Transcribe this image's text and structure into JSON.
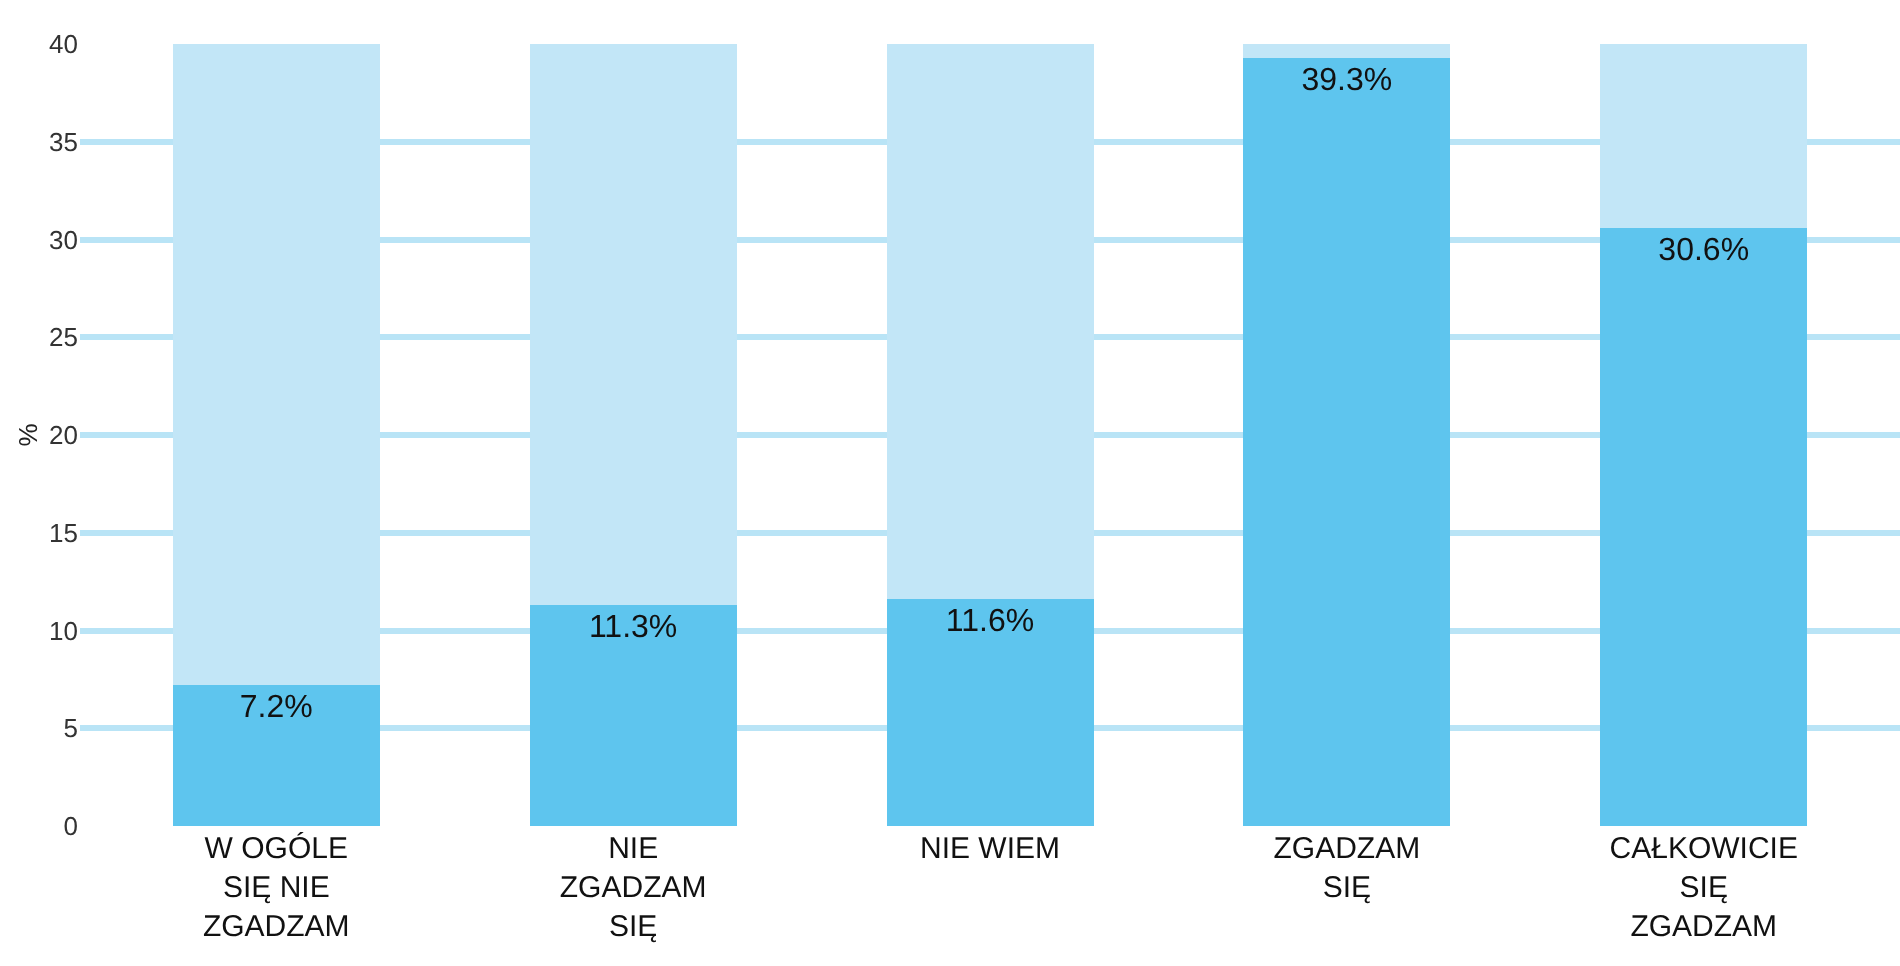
{
  "chart_data": {
    "type": "bar",
    "ylabel": "%",
    "categories": [
      "W OGÓLE SIĘ NIE ZGADZAM",
      "NIE ZGADZAM SIĘ",
      "NIE WIEM",
      "ZGADZAM SIĘ",
      "CAŁKOWICIE SIĘ ZGADZAM"
    ],
    "series": [
      {
        "color": "#5ec5ee",
        "values": [
          7.2,
          11.3,
          11.6,
          39.3,
          30.6
        ],
        "value_labels": [
          "7.2%",
          "11.3%",
          "11.6%",
          "39.3%",
          "30.6%"
        ]
      },
      {
        "color": "#c2e6f7",
        "values": [
          32.8,
          28.7,
          28.4,
          0.7,
          9.4
        ]
      }
    ],
    "stacked": true,
    "ylim": [
      0,
      40
    ],
    "yticks": [
      0,
      5,
      10,
      15,
      20,
      25,
      30,
      35,
      40
    ],
    "grid": "y"
  }
}
